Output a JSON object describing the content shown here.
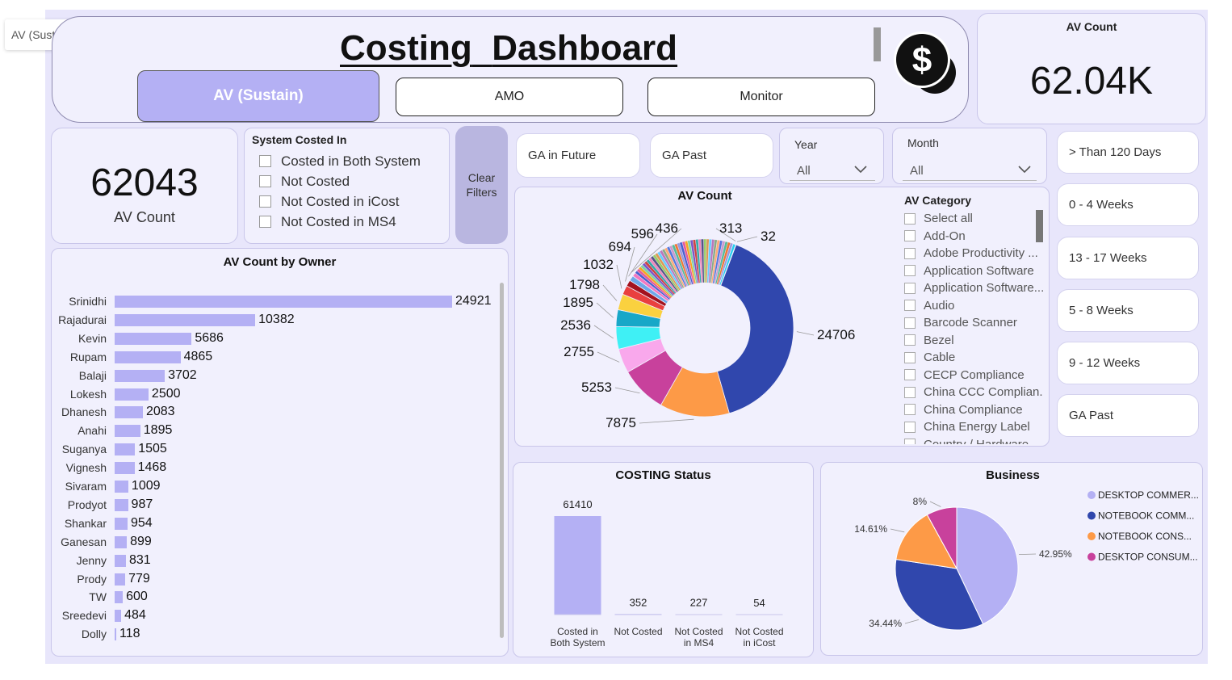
{
  "tooltip": "AV (Sustain) Selected",
  "header": {
    "title_word1": "Costing",
    "title_word2": "Dashboard",
    "tabs": [
      "AV (Sustain)",
      "AMO",
      "Monitor"
    ]
  },
  "kpi_top": {
    "label": "AV Count",
    "value": "62.04K"
  },
  "kpi_main": {
    "value": "62043",
    "label": "AV Count"
  },
  "system_slicer": {
    "title": "System Costed In",
    "options": [
      "Costed in Both System",
      "Not Costed",
      "Not Costed in iCost",
      "Not Costed in MS4"
    ]
  },
  "clear_filters": "Clear Filters",
  "ga_buttons": {
    "future": "GA in Future",
    "past": "GA Past"
  },
  "year_filter": {
    "label": "Year",
    "value": "All"
  },
  "month_filter": {
    "label": "Month",
    "value": "All"
  },
  "right_buttons": [
    "> Than 120 Days",
    "0 - 4 Weeks",
    "13 - 17 Weeks",
    "5 - 8 Weeks",
    "9 - 12 Weeks",
    "GA Past"
  ],
  "av_category": {
    "title": "AV Category",
    "items": [
      "Select all",
      "Add-On",
      "Adobe Productivity ...",
      "Application Software",
      "Application Software...",
      "Audio",
      "Barcode Scanner",
      "Bezel",
      "Cable",
      "CECP Compliance",
      "China CCC Complian...",
      "China Compliance",
      "China Energy Label",
      "Country / Hardware"
    ]
  },
  "colors": {
    "accent": "#b4b0f4",
    "donut_main": "#3047ad",
    "orange": "#fd9a47",
    "magenta": "#c8419c",
    "pink": "#f9a8ec",
    "cyan": "#3ff0f5",
    "teal": "#18a7c8",
    "yellow": "#fad13f",
    "red": "#e9403f",
    "darkred": "#a3121e"
  },
  "chart_data": [
    {
      "id": "owner",
      "type": "bar",
      "orientation": "horizontal",
      "title": "AV Count by Owner",
      "categories": [
        "Srinidhi",
        "Rajadurai",
        "Kevin",
        "Rupam",
        "Balaji",
        "Lokesh",
        "Dhanesh",
        "Anahi",
        "Suganya",
        "Vignesh",
        "Sivaram",
        "Prodyot",
        "Shankar",
        "Ganesan",
        "Jenny",
        "Prody",
        "TW",
        "Sreedevi",
        "Dolly"
      ],
      "values": [
        24921,
        10382,
        5686,
        4865,
        3702,
        2500,
        2083,
        1895,
        1505,
        1468,
        1009,
        987,
        954,
        899,
        831,
        779,
        600,
        484,
        118
      ]
    },
    {
      "id": "avcount",
      "type": "pie",
      "donut": true,
      "title": "AV Count",
      "values": [
        24706,
        7875,
        5253,
        2755,
        2536,
        1895,
        1798,
        1032,
        694,
        596,
        436,
        313,
        32
      ],
      "labels": [
        "24706",
        "7875",
        "5253",
        "2755",
        "2536",
        "1895",
        "1798",
        "1032",
        "694",
        "596",
        "436",
        "313",
        "32"
      ],
      "remainder_slices": 40
    },
    {
      "id": "status",
      "type": "bar",
      "title": "COSTING Status",
      "categories": [
        "Costed in Both System",
        "Not Costed",
        "Not Costed in MS4",
        "Not Costed in iCost"
      ],
      "category_lines": [
        [
          "Costed in",
          "Both System"
        ],
        [
          "Not Costed"
        ],
        [
          "Not Costed",
          "in MS4"
        ],
        [
          "Not Costed",
          "in iCost"
        ]
      ],
      "values": [
        61410,
        352,
        227,
        54
      ]
    },
    {
      "id": "business",
      "type": "pie",
      "title": "Business",
      "series": [
        {
          "name": "DESKTOP COMMER...",
          "value": 42.95,
          "label": "42.95%",
          "color": "#b4b0f4"
        },
        {
          "name": "NOTEBOOK COMM...",
          "value": 34.44,
          "label": "34.44%",
          "color": "#3047ad"
        },
        {
          "name": "NOTEBOOK CONS...",
          "value": 14.61,
          "label": "14.61%",
          "color": "#fd9a47"
        },
        {
          "name": "DESKTOP CONSUM...",
          "value": 8,
          "label": "8%",
          "color": "#c8419c"
        }
      ],
      "legend": "right"
    }
  ]
}
